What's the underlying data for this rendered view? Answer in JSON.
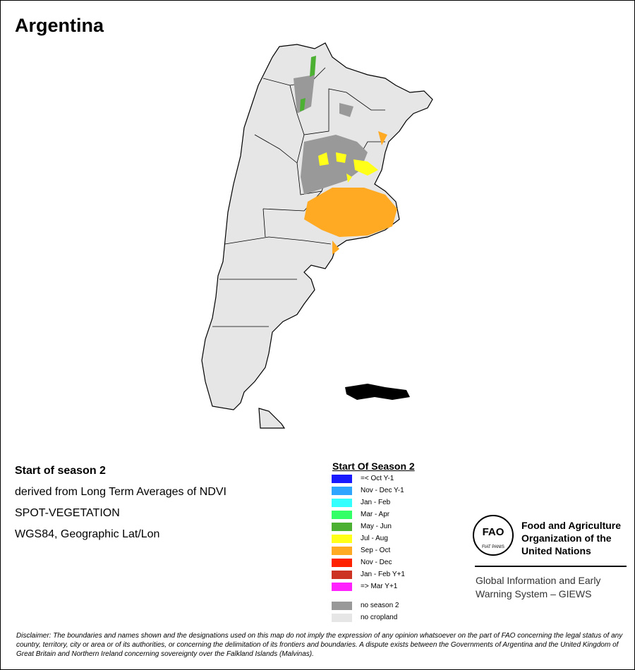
{
  "header": {
    "title": "Argentina"
  },
  "info": [
    "Start of season 2",
    "derived from Long Term Averages of NDVI",
    "SPOT-VEGETATION",
    "WGS84, Geographic Lat/Lon"
  ],
  "legend": {
    "title": "Start Of Season 2",
    "items": [
      {
        "label": "=< Oct Y-1",
        "color": "#1a1aff"
      },
      {
        "label": "Nov - Dec Y-1",
        "color": "#2ea6ff"
      },
      {
        "label": "Jan - Feb",
        "color": "#33ffff"
      },
      {
        "label": "Mar - Apr",
        "color": "#33ff66"
      },
      {
        "label": "May - Jun",
        "color": "#4cb033"
      },
      {
        "label": "Jul - Aug",
        "color": "#ffff19"
      },
      {
        "label": "Sep - Oct",
        "color": "#ffaa22"
      },
      {
        "label": "Nov - Dec",
        "color": "#ff2200"
      },
      {
        "label": "Jan - Feb Y+1",
        "color": "#cc3322"
      },
      {
        "label": "=> Mar Y+1",
        "color": "#ff22ff"
      }
    ],
    "extra": [
      {
        "label": "no season 2",
        "color": "#999999"
      },
      {
        "label": "no cropland",
        "color": "#e6e6e6"
      }
    ]
  },
  "logo": {
    "emblem": "FAO",
    "motto": "FIAT PANIS",
    "org": [
      "Food and Agriculture",
      "Organization of the",
      "United Nations"
    ],
    "system": [
      "Global Information and Early",
      "Warning System – GIEWS"
    ]
  },
  "disclaimer": "Disclaimer: The boundaries and names shown and the designations used on this map do not imply the expression of any opinion whatsoever on the part of FAO concerning the legal status of any country, territory, city or area or of its authorities, or concerning the delimitation of its frontiers and boundaries. A dispute exists between the Governments of Argentina and the United Kingdom of Great Britain and Northern Ireland concerning sovereignty over the Falkland Islands (Malvinas)."
}
